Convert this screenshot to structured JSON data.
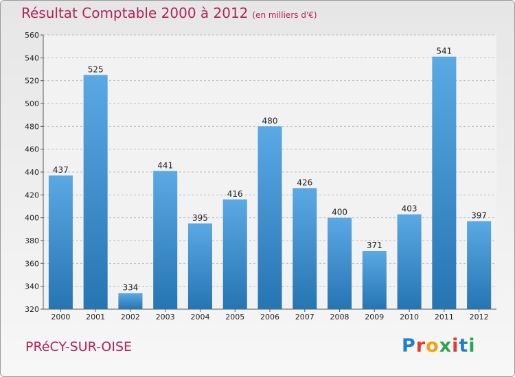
{
  "header": {
    "title": "Résultat Comptable 2000 à 2012",
    "subtitle": "(en milliers d'€)"
  },
  "footer": {
    "commune": "PRéCY-SUR-OISE",
    "brand": "Proxiti"
  },
  "colors": {
    "title": "#b0245a",
    "bar_top": "#5aa9e4",
    "bar_bottom": "#2675b3",
    "logo": [
      "#1f7fd1",
      "#e23b2e",
      "#f2a20a",
      "#2ea44f",
      "#e23b2e",
      "#1f7fd1",
      "#2ea44f"
    ]
  },
  "chart_data": {
    "type": "bar",
    "title": "Résultat Comptable 2000 à 2012",
    "subtitle": "(en milliers d'€)",
    "categories": [
      "2000",
      "2001",
      "2002",
      "2003",
      "2004",
      "2005",
      "2006",
      "2007",
      "2008",
      "2009",
      "2010",
      "2011",
      "2012"
    ],
    "values": [
      437,
      525,
      334,
      441,
      395,
      416,
      480,
      426,
      400,
      371,
      403,
      541,
      397
    ],
    "ylim": [
      320,
      560
    ],
    "yticks": [
      320,
      340,
      360,
      380,
      400,
      420,
      440,
      460,
      480,
      500,
      520,
      540,
      560
    ],
    "grid": true,
    "legend": "none"
  }
}
